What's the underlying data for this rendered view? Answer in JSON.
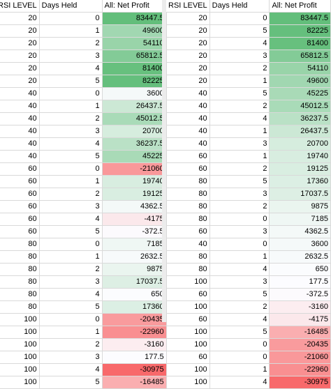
{
  "left_table": {
    "headers": [
      "RSI LEVEL",
      "Days Held",
      "All: Net Profit"
    ],
    "rows": [
      [
        "20",
        "0",
        "83447.5"
      ],
      [
        "20",
        "1",
        "49600"
      ],
      [
        "20",
        "2",
        "54110"
      ],
      [
        "20",
        "3",
        "65812.5"
      ],
      [
        "20",
        "4",
        "81400"
      ],
      [
        "20",
        "5",
        "82225"
      ],
      [
        "40",
        "0",
        "3600"
      ],
      [
        "40",
        "1",
        "26437.5"
      ],
      [
        "40",
        "2",
        "45012.5"
      ],
      [
        "40",
        "3",
        "20700"
      ],
      [
        "40",
        "4",
        "36237.5"
      ],
      [
        "40",
        "5",
        "45225"
      ],
      [
        "60",
        "0",
        "-21060"
      ],
      [
        "60",
        "1",
        "19740"
      ],
      [
        "60",
        "2",
        "19125"
      ],
      [
        "60",
        "3",
        "4362.5"
      ],
      [
        "60",
        "4",
        "-4175"
      ],
      [
        "60",
        "5",
        "-372.5"
      ],
      [
        "80",
        "0",
        "7185"
      ],
      [
        "80",
        "1",
        "2632.5"
      ],
      [
        "80",
        "2",
        "9875"
      ],
      [
        "80",
        "3",
        "17037.5"
      ],
      [
        "80",
        "4",
        "650"
      ],
      [
        "80",
        "5",
        "17360"
      ],
      [
        "100",
        "0",
        "-20435"
      ],
      [
        "100",
        "1",
        "-22960"
      ],
      [
        "100",
        "2",
        "-3160"
      ],
      [
        "100",
        "3",
        "177.5"
      ],
      [
        "100",
        "4",
        "-30975"
      ],
      [
        "100",
        "5",
        "-16485"
      ]
    ]
  },
  "right_table": {
    "headers": [
      "RSI LEVEL",
      "Days Held",
      "All: Net Profit"
    ],
    "rows": [
      [
        "20",
        "0",
        "83447.5"
      ],
      [
        "20",
        "5",
        "82225"
      ],
      [
        "20",
        "4",
        "81400"
      ],
      [
        "20",
        "3",
        "65812.5"
      ],
      [
        "20",
        "2",
        "54110"
      ],
      [
        "20",
        "1",
        "49600"
      ],
      [
        "40",
        "5",
        "45225"
      ],
      [
        "40",
        "2",
        "45012.5"
      ],
      [
        "40",
        "4",
        "36237.5"
      ],
      [
        "40",
        "1",
        "26437.5"
      ],
      [
        "40",
        "3",
        "20700"
      ],
      [
        "60",
        "1",
        "19740"
      ],
      [
        "60",
        "2",
        "19125"
      ],
      [
        "80",
        "5",
        "17360"
      ],
      [
        "80",
        "3",
        "17037.5"
      ],
      [
        "80",
        "2",
        "9875"
      ],
      [
        "80",
        "0",
        "7185"
      ],
      [
        "60",
        "3",
        "4362.5"
      ],
      [
        "40",
        "0",
        "3600"
      ],
      [
        "80",
        "1",
        "2632.5"
      ],
      [
        "80",
        "4",
        "650"
      ],
      [
        "100",
        "3",
        "177.5"
      ],
      [
        "60",
        "5",
        "-372.5"
      ],
      [
        "100",
        "2",
        "-3160"
      ],
      [
        "60",
        "4",
        "-4175"
      ],
      [
        "100",
        "5",
        "-16485"
      ],
      [
        "100",
        "0",
        "-20435"
      ],
      [
        "60",
        "0",
        "-21060"
      ],
      [
        "100",
        "1",
        "-22960"
      ],
      [
        "100",
        "4",
        "-30975"
      ]
    ]
  },
  "colors": {
    "max_green": "#63be7b",
    "mid_white": "#fcfcff",
    "min_red": "#f8696b",
    "grid": "#d9d9d9"
  }
}
